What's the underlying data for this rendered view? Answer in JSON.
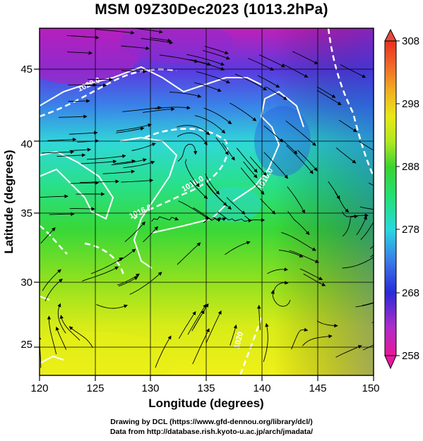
{
  "title": "MSM 09Z30Dec2023 (1013.2hPa)",
  "x_axis": {
    "label": "Longitude (degrees)",
    "ticks": [
      "120",
      "125",
      "130",
      "135",
      "140",
      "145",
      "150"
    ],
    "range": [
      120,
      150
    ]
  },
  "y_axis": {
    "label": "Latitude  (degrees)",
    "ticks": [
      "25",
      "30",
      "35",
      "40",
      "45"
    ],
    "range": [
      22.4,
      47.6
    ]
  },
  "colorbar": {
    "ticks": [
      "308",
      "298",
      "288",
      "278",
      "268",
      "258"
    ],
    "range": [
      258,
      308
    ],
    "colors": [
      "#e8189a",
      "#b02cc8",
      "#2a2ad8",
      "#3a7ae8",
      "#28d8e0",
      "#22e07a",
      "#3ad430",
      "#b0e820",
      "#e8e818",
      "#f0b020",
      "#f06a28",
      "#e83020"
    ]
  },
  "contours": {
    "labels": [
      "1020.0",
      "1016.0",
      "1016.0",
      "1016.0",
      "1020"
    ],
    "color": "#ffffff"
  },
  "credits": {
    "line1": "Drawing by DCL (https://www.gfd-dennou.org/library/dcl/)",
    "line2": "Data from http://database.rish.kyoto-u.ac.jp/arch/jmadata/"
  }
}
